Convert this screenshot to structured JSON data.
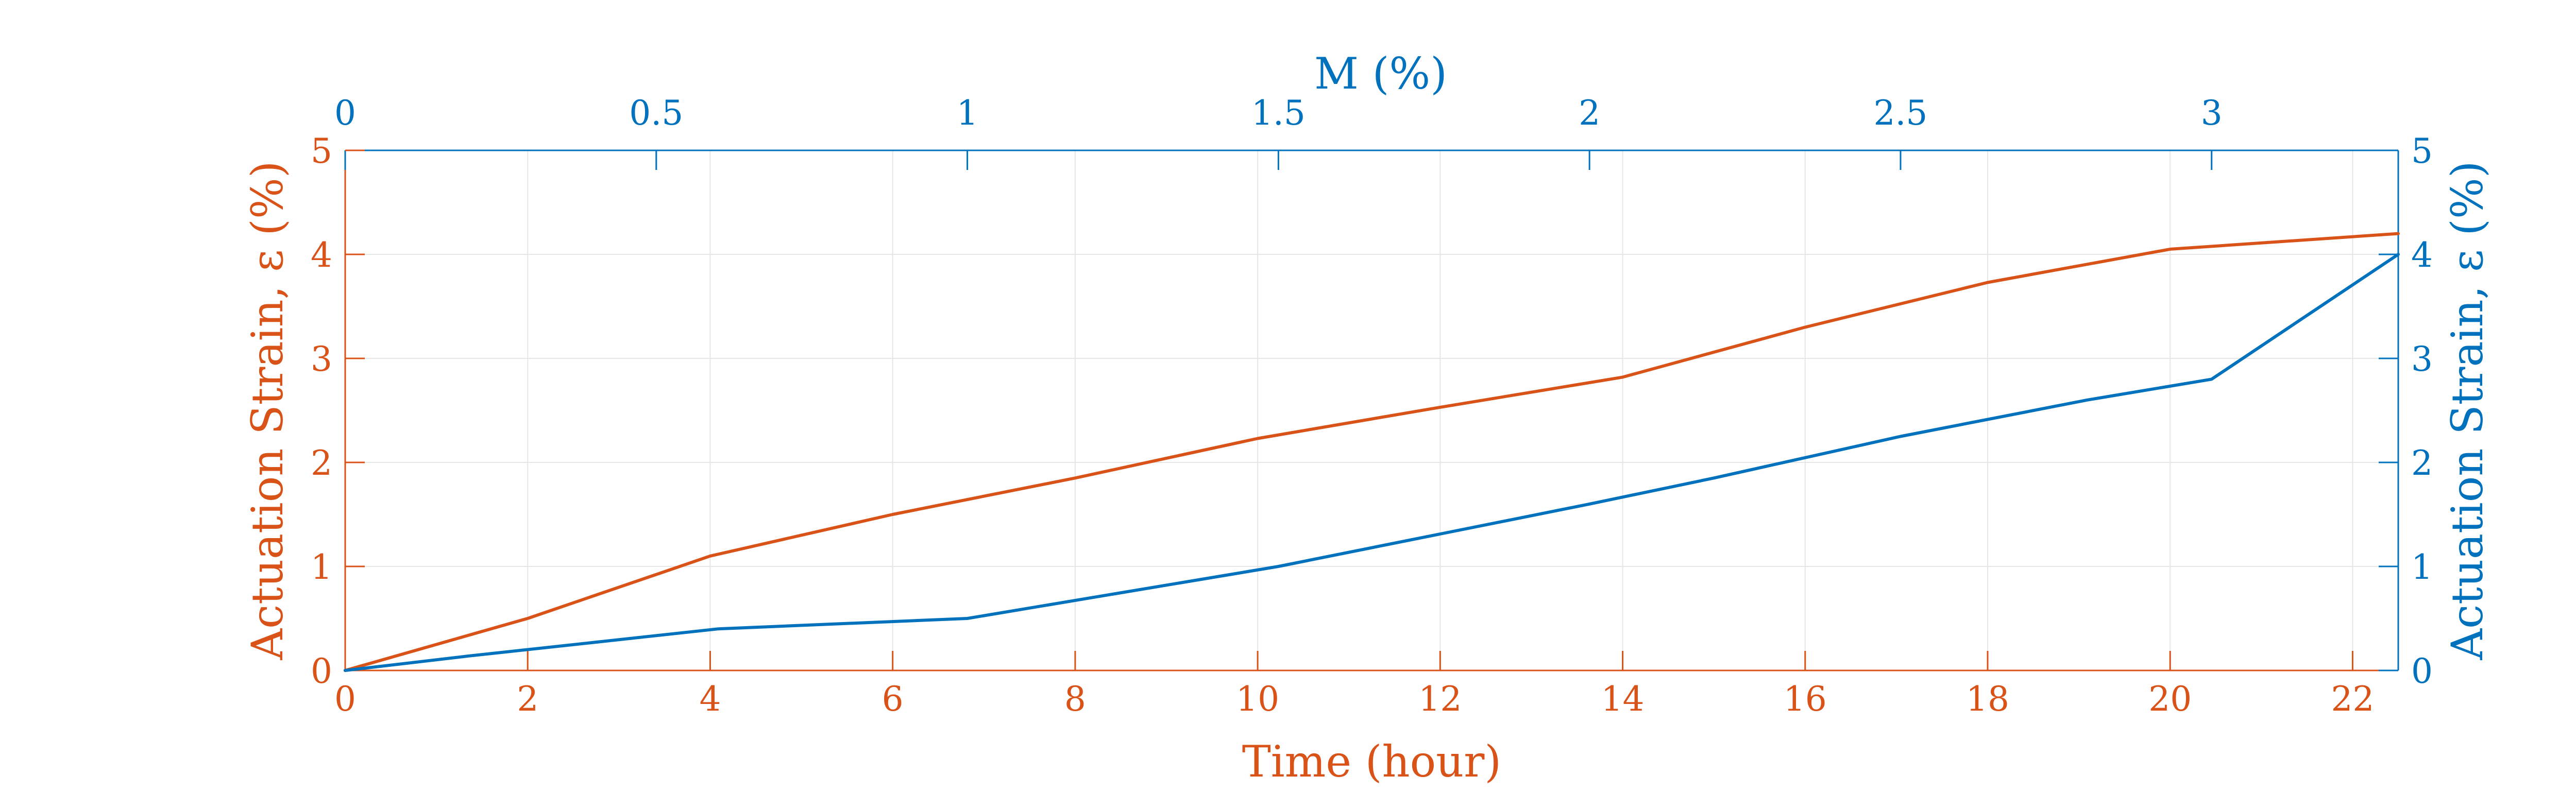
{
  "chart_data": {
    "type": "line",
    "title": "",
    "grid": true,
    "x_bottom": {
      "label": "Time (hour)",
      "lim": [
        0,
        22.5
      ],
      "ticks": [
        0,
        2,
        4,
        6,
        8,
        10,
        12,
        14,
        16,
        18,
        20,
        22
      ],
      "tick_labels": [
        "0",
        "2",
        "4",
        "6",
        "8",
        "10",
        "12",
        "14",
        "16",
        "18",
        "20",
        "22"
      ]
    },
    "x_top": {
      "label": "M (%)",
      "lim": [
        0,
        3.3
      ],
      "ticks": [
        0,
        0.5,
        1,
        1.5,
        2,
        2.5,
        3
      ],
      "tick_labels": [
        "0",
        "0.5",
        "1",
        "1.5",
        "2",
        "2.5",
        "3"
      ]
    },
    "y_left": {
      "label": "Actuation Strain, ε (%)",
      "lim": [
        0,
        5
      ],
      "ticks": [
        0,
        1,
        2,
        3,
        4,
        5
      ],
      "tick_labels": [
        "0",
        "1",
        "2",
        "3",
        "4",
        "5"
      ]
    },
    "y_right": {
      "label": "Actuation Strain, ε (%)",
      "lim": [
        0,
        5
      ],
      "ticks": [
        0,
        1,
        2,
        3,
        4,
        5
      ],
      "tick_labels": [
        "0",
        "1",
        "2",
        "3",
        "4",
        "5"
      ]
    },
    "series": [
      {
        "x_axis": "bottom",
        "y_axis": "left",
        "color": "#D95319",
        "x": [
          0,
          2,
          4,
          6,
          8,
          10,
          12,
          14,
          16,
          18,
          20,
          22.5
        ],
        "y": [
          0,
          0.5,
          1.1,
          1.5,
          1.85,
          2.23,
          2.53,
          2.82,
          3.3,
          3.73,
          4.05,
          4.2
        ]
      },
      {
        "x_axis": "top",
        "y_axis": "right",
        "color": "#0072BD",
        "x": [
          0,
          0.2,
          0.4,
          0.6,
          1.0,
          1.5,
          2.0,
          2.2,
          2.5,
          2.8,
          3.0,
          3.3
        ],
        "y": [
          0,
          0.14,
          0.27,
          0.4,
          0.5,
          1.0,
          1.6,
          1.85,
          2.25,
          2.6,
          2.8,
          4.0
        ]
      }
    ]
  },
  "colors": {
    "left_axis": "#D95319",
    "right_axis": "#0072BD",
    "grid": "#E6E6E6"
  }
}
